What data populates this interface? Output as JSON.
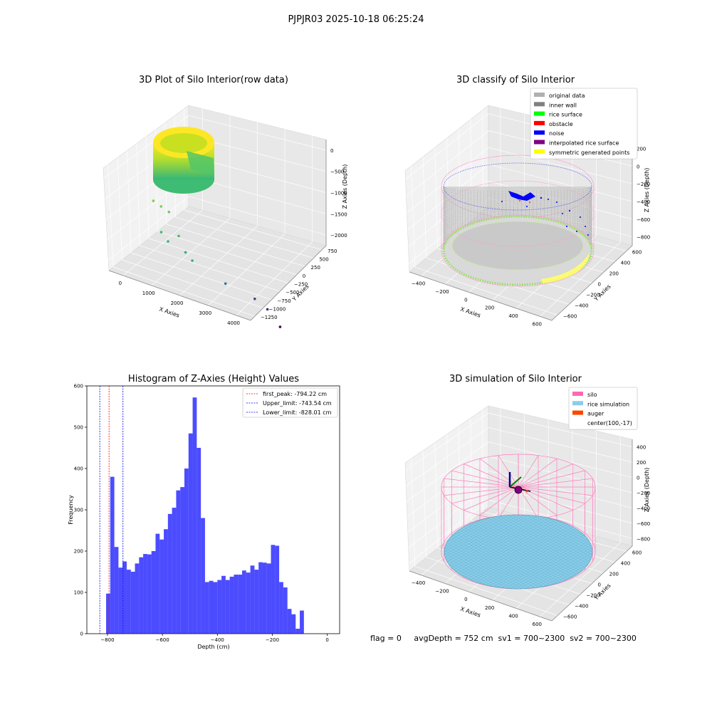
{
  "suptitle": "PJPJR03 2025-10-18 06:25:24",
  "status_line": "flag = 0     avgDepth = 752 cm  sv1 = 700~2300  sv2 = 700~2300",
  "chart_data": [
    {
      "type": "scatter",
      "title": "3D Plot of Silo Interior(row data)",
      "xlabel": "X Axies",
      "ylabel": "Y Axies",
      "zlabel": "Z Axies (Depth)",
      "x_ticks": [
        "0",
        "1000",
        "2000",
        "3000",
        "4000"
      ],
      "y_ticks": [
        "750",
        "500",
        "250",
        "0",
        "−250",
        "−500",
        "−750",
        "−1000",
        "−1250"
      ],
      "z_ticks": [
        "0",
        "−500",
        "−1000",
        "−1500",
        "−2000"
      ],
      "colormap": "viridis",
      "main_cluster": "dense ring of points near x≈100–500, z≈0 to −600",
      "outliers": [
        {
          "x": 900,
          "y": 300,
          "z": -700
        },
        {
          "x": 1100,
          "y": 250,
          "z": -750
        },
        {
          "x": 1300,
          "y": 200,
          "z": -800
        },
        {
          "x": 900,
          "y": 100,
          "z": -1100
        },
        {
          "x": 1000,
          "y": 0,
          "z": -1200
        },
        {
          "x": 1500,
          "y": 100,
          "z": -1100
        },
        {
          "x": 1600,
          "y": 0,
          "z": -1300
        },
        {
          "x": 1900,
          "y": 50,
          "z": -1400
        },
        {
          "x": 2700,
          "y": -200,
          "z": -1600
        },
        {
          "x": 3300,
          "y": -500,
          "z": -1700
        },
        {
          "x": 3600,
          "y": -600,
          "z": -1800
        },
        {
          "x": 3900,
          "y": -700,
          "z": -2000
        }
      ]
    },
    {
      "type": "scatter",
      "title": "3D classify of Silo Interior",
      "xlabel": "X Axies",
      "ylabel": "Y Axies",
      "zlabel": "Z Axies (Depth)",
      "x_ticks": [
        "−400",
        "−200",
        "0",
        "200",
        "400",
        "600"
      ],
      "y_ticks": [
        "600",
        "400",
        "200",
        "0",
        "−200",
        "−400",
        "−600"
      ],
      "z_ticks": [
        "200",
        "0",
        "−200",
        "−400",
        "−600",
        "−800"
      ],
      "legend": [
        {
          "label": "original data",
          "color": "#b0b0b0"
        },
        {
          "label": "inner wall",
          "color": "#808080"
        },
        {
          "label": "rice surface",
          "color": "#00ff00"
        },
        {
          "label": "obstacle",
          "color": "#ff0000"
        },
        {
          "label": "noise",
          "color": "#0000ff"
        },
        {
          "label": "interpolated rice surface",
          "color": "#800080"
        },
        {
          "label": "symmetric generated points",
          "color": "#ffff00"
        }
      ],
      "legend_loc": "upper right"
    },
    {
      "type": "bar",
      "title": "Histogram of Z-Axies (Height) Values",
      "xlabel": "Depth (cm)",
      "ylabel": "Frequency",
      "bar_color": "#0000ff",
      "bin_start": -850,
      "bin_width": 15,
      "values": [
        0,
        0,
        0,
        97,
        380,
        210,
        160,
        175,
        155,
        150,
        170,
        185,
        193,
        192,
        200,
        242,
        228,
        253,
        290,
        305,
        347,
        355,
        400,
        485,
        572,
        450,
        280,
        125,
        128,
        125,
        130,
        140,
        130,
        138,
        143,
        143,
        153,
        148,
        165,
        155,
        173,
        172,
        170,
        215,
        213,
        125,
        112,
        60,
        47,
        12,
        56,
        0
      ],
      "x_ticks": [
        -800,
        -600,
        -400,
        -200,
        0
      ],
      "xlim": [
        -875,
        45
      ],
      "y_ticks": [
        0,
        100,
        200,
        300,
        400,
        500,
        600
      ],
      "ylim": [
        0,
        600
      ],
      "vlines": [
        {
          "x": -794.22,
          "color": "#ff0000",
          "label": "first_peak: -794.22 cm"
        },
        {
          "x": -743.54,
          "color": "#0000ff",
          "label": "Upper_limit: -743.54 cm"
        },
        {
          "x": -828.01,
          "color": "#0000ff",
          "label": "Lower_limit: -828.01 cm"
        }
      ],
      "legend_loc": "upper right"
    },
    {
      "type": "scatter",
      "title": "3D simulation of Silo Interior",
      "xlabel": "X Axies",
      "ylabel": "Y Axies",
      "zlabel": "Z Axies (Depth)",
      "x_ticks": [
        "−400",
        "−200",
        "0",
        "200",
        "400",
        "600"
      ],
      "y_ticks": [
        "600",
        "400",
        "200",
        "0",
        "−200",
        "−400",
        "−600"
      ],
      "z_ticks": [
        "400",
        "200",
        "0",
        "−200",
        "−400",
        "−600",
        "−800"
      ],
      "legend": [
        {
          "label": "silo",
          "color": "#ff69b4"
        },
        {
          "label": "rice simulation",
          "color": "#87ceeb"
        },
        {
          "label": "auger",
          "color": "#ff4500"
        },
        {
          "label": "center(100,-17)",
          "color": "none"
        }
      ],
      "legend_loc": "upper right"
    }
  ]
}
